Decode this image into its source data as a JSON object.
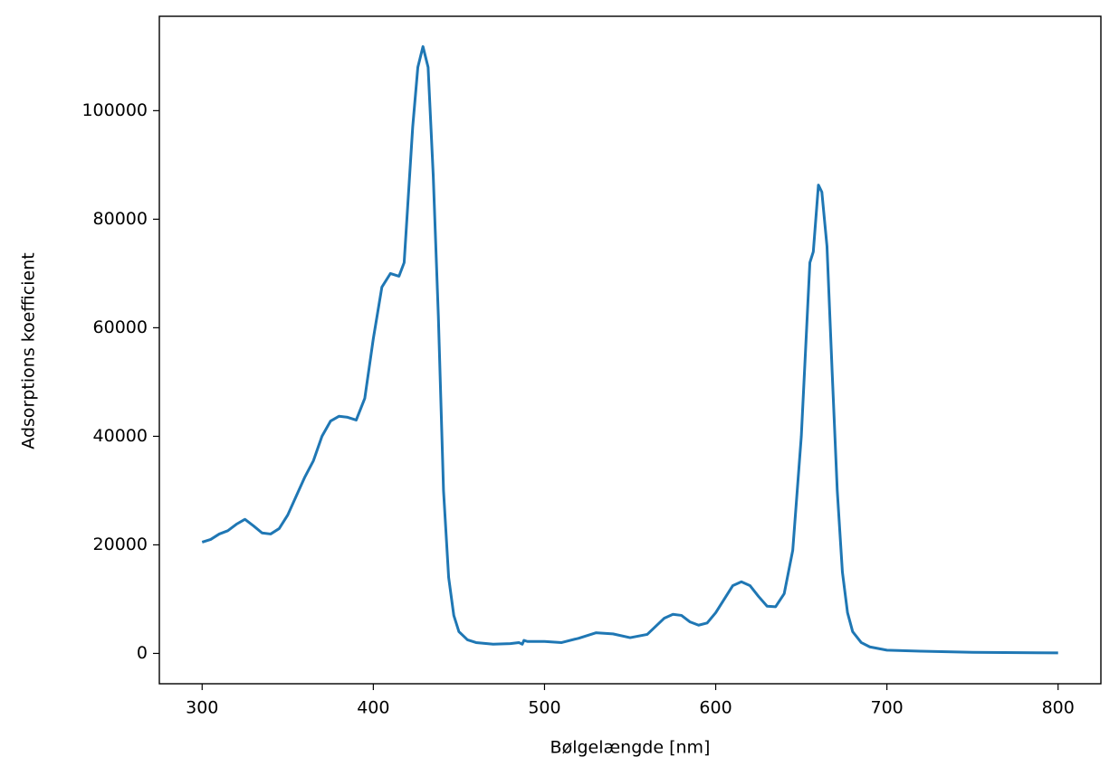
{
  "chart_data": {
    "type": "line",
    "x_label": "Bølgelængde [nm]",
    "y_label": "Adsorptions koefficient",
    "x": [
      300,
      305,
      310,
      315,
      320,
      325,
      330,
      335,
      340,
      345,
      350,
      355,
      360,
      365,
      370,
      375,
      380,
      385,
      390,
      395,
      400,
      405,
      410,
      415,
      418,
      420,
      423,
      426,
      429,
      432,
      435,
      438,
      441,
      444,
      447,
      450,
      455,
      460,
      470,
      480,
      485,
      487,
      488,
      490,
      500,
      510,
      520,
      530,
      540,
      550,
      560,
      565,
      570,
      575,
      580,
      585,
      590,
      595,
      600,
      605,
      610,
      615,
      620,
      625,
      630,
      635,
      640,
      645,
      650,
      655,
      657,
      660,
      662,
      665,
      668,
      671,
      674,
      677,
      680,
      685,
      690,
      700,
      720,
      750,
      800
    ],
    "series": [
      {
        "name": "Adsorptions koefficient",
        "color": "#1f77b4",
        "values": [
          20500,
          21000,
          22000,
          22600,
          23800,
          24700,
          23500,
          22200,
          22000,
          23000,
          25500,
          29000,
          32500,
          35500,
          40000,
          42800,
          43700,
          43500,
          43000,
          47000,
          58000,
          67500,
          70000,
          69500,
          72000,
          82000,
          97000,
          108000,
          111800,
          108000,
          88000,
          62000,
          30000,
          14000,
          7000,
          4000,
          2500,
          2000,
          1700,
          1800,
          2000,
          1700,
          2400,
          2200,
          2200,
          2000,
          2800,
          3800,
          3600,
          2900,
          3500,
          5000,
          6500,
          7200,
          7000,
          5800,
          5200,
          5600,
          7500,
          10000,
          12500,
          13200,
          12500,
          10500,
          8700,
          8600,
          11000,
          19000,
          40000,
          72000,
          74000,
          86300,
          85000,
          75000,
          52000,
          30000,
          15000,
          7500,
          4000,
          2000,
          1200,
          600,
          400,
          200,
          100
        ]
      }
    ],
    "xlim": [
      275,
      825
    ],
    "xticks": [
      300,
      400,
      500,
      600,
      700,
      800
    ],
    "ylim": [
      -5590,
      117390
    ],
    "yticks": [
      0,
      20000,
      40000,
      60000,
      80000,
      100000
    ],
    "grid": false
  }
}
